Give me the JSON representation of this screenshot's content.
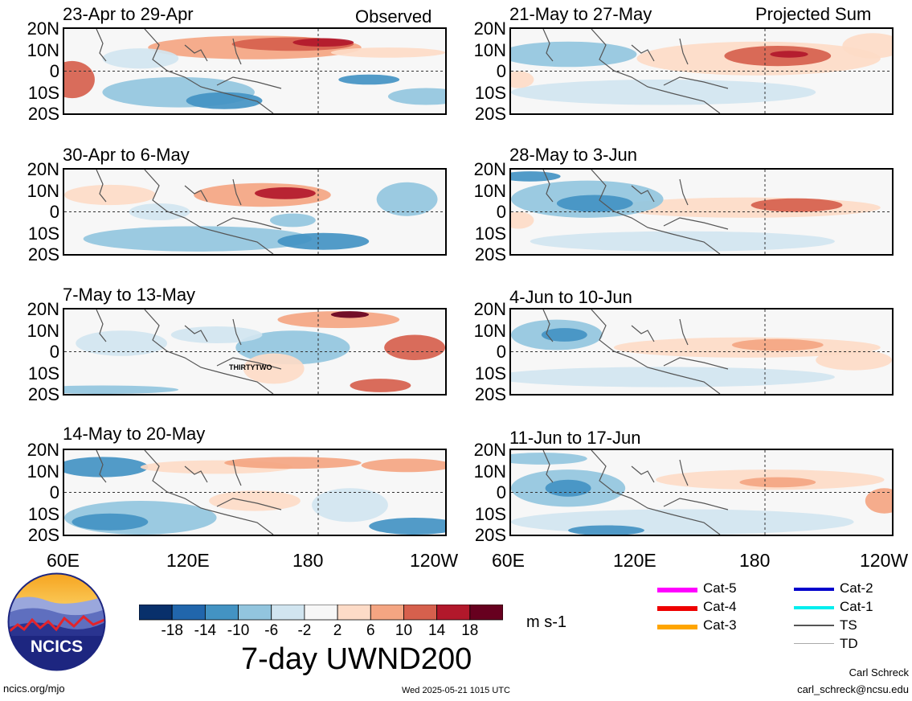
{
  "chart_data": {
    "type": "heatmap",
    "title": "7-day UWND200",
    "units": "m s-1",
    "observed_label": "Observed",
    "projected_label": "Projected Sum",
    "y_ticks": [
      "20N",
      "10N",
      "0",
      "10S",
      "20S"
    ],
    "x_ticks": [
      "60E",
      "120E",
      "180",
      "120W"
    ],
    "x_ticks_right": [
      "60E",
      "120E",
      "180",
      "120W"
    ],
    "colorbar_labels": [
      "-18",
      "-14",
      "-10",
      "-6",
      "-2",
      "2",
      "6",
      "10",
      "14",
      "18"
    ],
    "colorbar_colors": [
      "#08306b",
      "#2166ac",
      "#4393c3",
      "#92c5de",
      "#d1e5f0",
      "#f7f7f7",
      "#fddbc7",
      "#f4a582",
      "#d6604d",
      "#b2182b",
      "#67001f"
    ],
    "xlim": [
      60,
      240
    ],
    "ylim": [
      -20,
      20
    ],
    "panels": [
      {
        "id": "obs1",
        "column": "Observed",
        "title": "23-Apr to 29-Apr"
      },
      {
        "id": "obs2",
        "column": "Observed",
        "title": "30-Apr to 6-May"
      },
      {
        "id": "obs3",
        "column": "Observed",
        "title": "7-May to 13-May",
        "annotation": "THIRTYTWO"
      },
      {
        "id": "obs4",
        "column": "Observed",
        "title": "14-May to 20-May"
      },
      {
        "id": "prj1",
        "column": "Projected Sum",
        "title": "21-May to 27-May"
      },
      {
        "id": "prj2",
        "column": "Projected Sum",
        "title": "28-May to 3-Jun"
      },
      {
        "id": "prj3",
        "column": "Projected Sum",
        "title": "4-Jun to 10-Jun"
      },
      {
        "id": "prj4",
        "column": "Projected Sum",
        "title": "11-Jun to 17-Jun"
      }
    ]
  },
  "legend": {
    "items": [
      {
        "label": "Cat-5",
        "color": "#ff00ff"
      },
      {
        "label": "Cat-4",
        "color": "#ee0000"
      },
      {
        "label": "Cat-3",
        "color": "#ffa500"
      },
      {
        "label": "Cat-2",
        "color": "#0000cc"
      },
      {
        "label": "Cat-1",
        "color": "#00eeee"
      },
      {
        "label": "TS",
        "color": "#555555"
      },
      {
        "label": "TD",
        "color": "#aaaaaa"
      }
    ]
  },
  "logo": {
    "text": "NCICS"
  },
  "footer": {
    "url": "ncics.org/mjo",
    "timestamp": "Wed 2025-05-21 1015 UTC",
    "author": "Carl Schreck",
    "email": "carl_schreck@ncsu.edu"
  }
}
